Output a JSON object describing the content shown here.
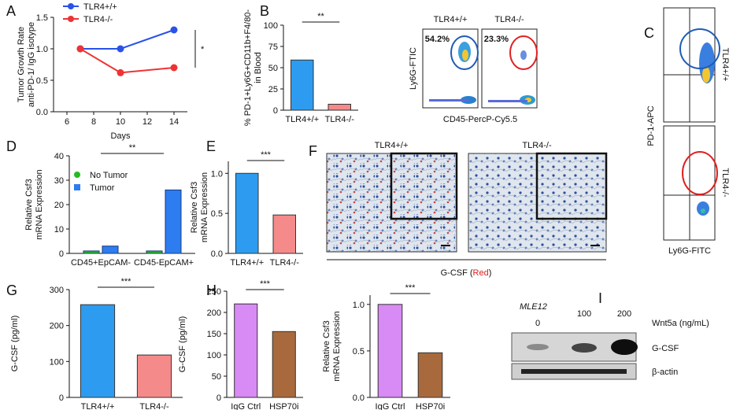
{
  "chart_data": [
    {
      "type": "line",
      "panel": "A",
      "ylabel": [
        "Tumor Growth Rate",
        "anti-PD-1/ IgG isotype"
      ],
      "xlabel": "Days",
      "x": [
        7,
        10,
        14
      ],
      "xlim": [
        5,
        15
      ],
      "xticks": [
        6,
        8,
        10,
        12,
        14
      ],
      "ylim": [
        0,
        1.5
      ],
      "yticks": [
        {
          "value": 0,
          "label": "0.0"
        },
        {
          "value": 0.5,
          "label": "0.5"
        },
        {
          "value": 1,
          "label": "1.0"
        },
        {
          "value": 1.5,
          "label": "1.5"
        }
      ],
      "series": [
        {
          "name": "TLR4+/+",
          "color": "#2a52e8",
          "values": [
            1.0,
            1.0,
            1.3
          ]
        },
        {
          "name": "TLR4-/-",
          "color": "#ee3333",
          "values": [
            1.0,
            0.62,
            0.7
          ]
        }
      ],
      "annotation": "*"
    },
    {
      "type": "bar",
      "panel": "B",
      "ylabel": [
        "% PD-1+Ly6G+CD11b+F4/80-",
        "in Blood"
      ],
      "categories": [
        "TLR4+/+",
        "TLR4-/-"
      ],
      "values": [
        59,
        7
      ],
      "colors": [
        "#2d9cf0",
        "#f58a8a"
      ],
      "ylim": [
        0,
        100
      ],
      "yticks": [
        0,
        25,
        50,
        75,
        100
      ],
      "annotation": "**"
    },
    {
      "type": "bar",
      "panel": "D",
      "ylabel": [
        "Relative Csf3",
        "mRNA Expression"
      ],
      "categories": [
        "CD45+EpCAM-",
        "CD45-EpCAM+"
      ],
      "series": [
        {
          "name": "No Tumor",
          "color": "#22bb22",
          "values": [
            1,
            1
          ]
        },
        {
          "name": "Tumor",
          "color": "#2d7cf0",
          "values": [
            3,
            26
          ]
        }
      ],
      "ylim": [
        0,
        40
      ],
      "yticks": [
        0,
        10,
        20,
        30,
        40
      ],
      "annotation": "**"
    },
    {
      "type": "bar",
      "panel": "E",
      "ylabel": [
        "Relative Csf3",
        "mRNA Expression"
      ],
      "categories": [
        "TLR4+/+",
        "TLR4-/-"
      ],
      "values": [
        1.0,
        0.48
      ],
      "colors": [
        "#2d9cf0",
        "#f58a8a"
      ],
      "ylim": [
        0,
        1.15
      ],
      "yticks": [
        {
          "value": 0,
          "label": "0.0"
        },
        {
          "value": 0.5,
          "label": "0.5"
        },
        {
          "value": 1,
          "label": "1.0"
        }
      ],
      "annotation": "***"
    },
    {
      "type": "bar",
      "panel": "G",
      "ylabel": [
        "G-CSF (pg/ml)"
      ],
      "categories": [
        "TLR4+/+",
        "TLR4-/-"
      ],
      "values": [
        258,
        118
      ],
      "colors": [
        "#2d9cf0",
        "#f58a8a"
      ],
      "ylim": [
        0,
        300
      ],
      "yticks": [
        0,
        100,
        200,
        300
      ],
      "annotation": "***"
    },
    {
      "type": "bar",
      "panel": "H",
      "ylabel": [
        "G-CSF (pg/ml)"
      ],
      "categories": [
        "IgG Ctrl",
        "HSP70i"
      ],
      "values": [
        220,
        155
      ],
      "colors": [
        "#d88af5",
        "#a86a3c"
      ],
      "ylim": [
        0,
        250
      ],
      "yticks": [
        0,
        50,
        100,
        150,
        200,
        250
      ],
      "annotation": "***"
    },
    {
      "type": "bar",
      "ylabel": [
        "Relative Csf3",
        "mRNA Expression"
      ],
      "categories": [
        "IgG Ctrl",
        "HSP70i"
      ],
      "values": [
        1.0,
        0.48
      ],
      "colors": [
        "#d88af5",
        "#a86a3c"
      ],
      "ylim": [
        0,
        1.1
      ],
      "yticks": [
        {
          "value": 0,
          "label": "0.0"
        },
        {
          "value": 0.5,
          "label": "0.5"
        },
        {
          "value": 1,
          "label": "1.0"
        }
      ],
      "annotation": "***"
    }
  ],
  "flow_b": {
    "titles": [
      "TLR4+/+",
      "TLR4-/-"
    ],
    "gates": [
      "54.2%",
      "23.3%"
    ],
    "ylabel": "Ly6G-FTIC",
    "xlabel": "CD45-PercP-Cy5.5"
  },
  "flow_c": {
    "panel": "C",
    "labels": [
      "TLR4+/+",
      "TLR4-/-"
    ],
    "ylabel": "PD-1-APC",
    "xlabel": "Ly6G-FITC"
  },
  "histology": {
    "panel": "F",
    "titles": [
      "TLR4+/+",
      "TLR4-/-"
    ],
    "caption": [
      "G-CSF (",
      "Red",
      ")"
    ]
  },
  "blot": {
    "panel": "I",
    "cell_line": "MLE12",
    "doses": [
      "0",
      "100",
      "200"
    ],
    "treatment": "Wnt5a (ng/mL)",
    "bands": [
      "G-CSF",
      "β-actin"
    ]
  }
}
